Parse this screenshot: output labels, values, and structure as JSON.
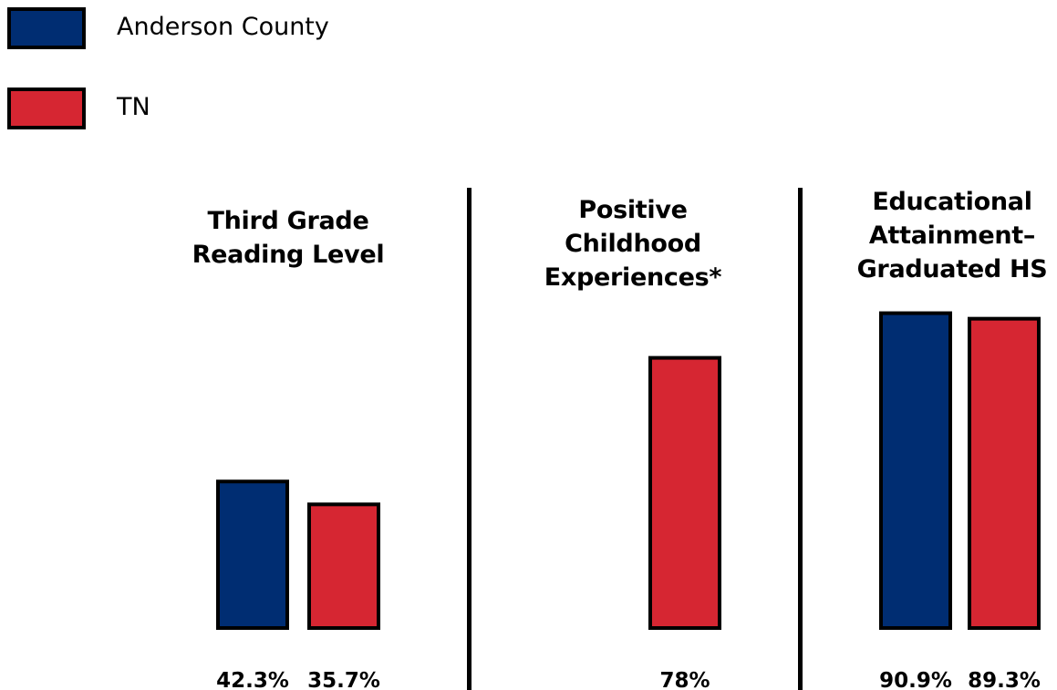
{
  "colors": {
    "anderson": "#002d72",
    "tn": "#d62632",
    "outline": "#000000"
  },
  "legend": [
    {
      "label": "Anderson County",
      "color": "#002d72"
    },
    {
      "label": "TN",
      "color": "#d62632"
    }
  ],
  "panels": [
    {
      "title_lines": [
        "Third Grade",
        "Reading Level"
      ]
    },
    {
      "title_lines": [
        "Positive",
        "Childhood",
        "Experiences*"
      ]
    },
    {
      "title_lines": [
        "Educational",
        "Attainment–",
        "Graduated HS"
      ]
    }
  ],
  "chart_data": {
    "type": "bar",
    "categories": [
      "Third Grade Reading Level",
      "Positive Childhood Experiences*",
      "Educational Attainment–Graduated HS"
    ],
    "series": [
      {
        "name": "Anderson County",
        "color": "#002d72",
        "values": [
          42.3,
          null,
          90.9
        ],
        "labels": [
          "42.3%",
          "",
          "90.9%"
        ]
      },
      {
        "name": "TN",
        "color": "#d62632",
        "values": [
          35.7,
          78,
          89.3
        ],
        "labels": [
          "35.7%",
          "78%",
          "89.3%"
        ]
      }
    ],
    "unit": "%",
    "grid": false,
    "legend_position": "top-left"
  }
}
